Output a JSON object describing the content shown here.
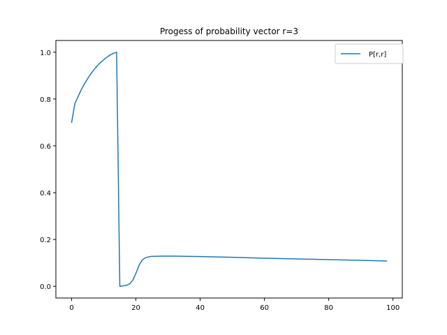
{
  "chart_data": {
    "type": "line",
    "title": "Progess of probability vector r=3",
    "xlabel": "",
    "ylabel": "",
    "xlim": [
      -4.9,
      102.9
    ],
    "ylim": [
      -0.05,
      1.05
    ],
    "xticks": [
      0,
      20,
      40,
      60,
      80,
      100
    ],
    "yticks": [
      0.0,
      0.2,
      0.4,
      0.6,
      0.8,
      1.0
    ],
    "xtick_labels": [
      "0",
      "20",
      "40",
      "60",
      "80",
      "100"
    ],
    "ytick_labels": [
      "0.0",
      "0.2",
      "0.4",
      "0.6",
      "0.8",
      "1.0"
    ],
    "grid": false,
    "legend_position": "top-right",
    "series": [
      {
        "name": "P[r,r]",
        "color": "#1f77b4",
        "x": [
          0,
          1,
          2,
          3,
          4,
          5,
          6,
          7,
          8,
          9,
          10,
          11,
          12,
          13,
          14,
          15,
          16,
          17,
          18,
          19,
          20,
          21,
          22,
          23,
          24,
          25,
          26,
          28,
          30,
          32,
          35,
          40,
          50,
          60,
          70,
          80,
          90,
          98
        ],
        "y": [
          0.7,
          0.78,
          0.81,
          0.84,
          0.865,
          0.887,
          0.908,
          0.926,
          0.942,
          0.956,
          0.968,
          0.979,
          0.988,
          0.995,
          1.0,
          0.0,
          0.002,
          0.004,
          0.01,
          0.025,
          0.055,
          0.09,
          0.113,
          0.122,
          0.126,
          0.128,
          0.128,
          0.129,
          0.129,
          0.129,
          0.128,
          0.127,
          0.124,
          0.12,
          0.117,
          0.114,
          0.111,
          0.108
        ]
      }
    ]
  }
}
